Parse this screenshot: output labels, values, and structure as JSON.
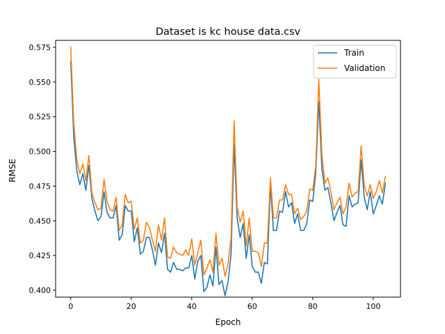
{
  "chart_data": {
    "type": "line",
    "title": "Dataset is kc house data.csv",
    "xlabel": "Epoch",
    "ylabel": "RMSE",
    "xlim": [
      -5,
      109
    ],
    "ylim": [
      0.395,
      0.58
    ],
    "xticks": [
      "0",
      "20",
      "40",
      "60",
      "80",
      "100"
    ],
    "yticks": [
      "0.400",
      "0.425",
      "0.450",
      "0.475",
      "0.500",
      "0.525",
      "0.550",
      "0.575"
    ],
    "grid": false,
    "legend_position": "top-right",
    "x": [
      0,
      1,
      2,
      3,
      4,
      5,
      6,
      7,
      8,
      9,
      10,
      11,
      12,
      13,
      14,
      15,
      16,
      17,
      18,
      19,
      20,
      21,
      22,
      23,
      24,
      25,
      26,
      27,
      28,
      29,
      30,
      31,
      32,
      33,
      34,
      35,
      36,
      37,
      38,
      39,
      40,
      41,
      42,
      43,
      44,
      45,
      46,
      47,
      48,
      49,
      50,
      51,
      52,
      53,
      54,
      55,
      56,
      57,
      58,
      59,
      60,
      61,
      62,
      63,
      64,
      65,
      66,
      67,
      68,
      69,
      70,
      71,
      72,
      73,
      74,
      75,
      76,
      77,
      78,
      79,
      80,
      81,
      82,
      83,
      84,
      85,
      86,
      87,
      88,
      89,
      90,
      91,
      92,
      93,
      94,
      95,
      96,
      97,
      98,
      99,
      100,
      101,
      102,
      103,
      104
    ],
    "series": [
      {
        "name": "Train",
        "color": "#1f77b4",
        "values": [
          0.565,
          0.51,
          0.486,
          0.476,
          0.484,
          0.472,
          0.49,
          0.466,
          0.457,
          0.45,
          0.453,
          0.471,
          0.456,
          0.452,
          0.452,
          0.461,
          0.436,
          0.44,
          0.461,
          0.457,
          0.457,
          0.435,
          0.445,
          0.426,
          0.428,
          0.438,
          0.438,
          0.429,
          0.418,
          0.434,
          0.427,
          0.441,
          0.415,
          0.413,
          0.42,
          0.415,
          0.415,
          0.414,
          0.416,
          0.416,
          0.425,
          0.408,
          0.421,
          0.425,
          0.399,
          0.402,
          0.411,
          0.403,
          0.431,
          0.404,
          0.407,
          0.396,
          0.406,
          0.426,
          0.505,
          0.452,
          0.438,
          0.448,
          0.423,
          0.44,
          0.417,
          0.413,
          0.413,
          0.405,
          0.42,
          0.419,
          0.476,
          0.443,
          0.443,
          0.457,
          0.456,
          0.471,
          0.46,
          0.463,
          0.448,
          0.455,
          0.443,
          0.443,
          0.448,
          0.465,
          0.464,
          0.485,
          0.536,
          0.488,
          0.472,
          0.474,
          0.463,
          0.45,
          0.456,
          0.461,
          0.447,
          0.446,
          0.468,
          0.46,
          0.462,
          0.463,
          0.494,
          0.467,
          0.458,
          0.471,
          0.455,
          0.461,
          0.468,
          0.462,
          0.477
        ]
      },
      {
        "name": "Validation",
        "color": "#ff7f0e",
        "values": [
          0.575,
          0.52,
          0.494,
          0.484,
          0.491,
          0.479,
          0.497,
          0.47,
          0.463,
          0.458,
          0.459,
          0.48,
          0.464,
          0.458,
          0.457,
          0.467,
          0.443,
          0.447,
          0.469,
          0.463,
          0.464,
          0.444,
          0.452,
          0.434,
          0.436,
          0.449,
          0.445,
          0.436,
          0.428,
          0.447,
          0.436,
          0.452,
          0.424,
          0.423,
          0.431,
          0.427,
          0.426,
          0.425,
          0.429,
          0.425,
          0.437,
          0.418,
          0.427,
          0.436,
          0.411,
          0.416,
          0.422,
          0.413,
          0.441,
          0.418,
          0.423,
          0.41,
          0.419,
          0.438,
          0.522,
          0.46,
          0.449,
          0.457,
          0.432,
          0.452,
          0.428,
          0.428,
          0.427,
          0.417,
          0.434,
          0.434,
          0.481,
          0.452,
          0.452,
          0.465,
          0.465,
          0.476,
          0.469,
          0.469,
          0.455,
          0.459,
          0.451,
          0.453,
          0.457,
          0.473,
          0.472,
          0.49,
          0.552,
          0.498,
          0.477,
          0.481,
          0.471,
          0.458,
          0.463,
          0.467,
          0.455,
          0.46,
          0.477,
          0.467,
          0.47,
          0.471,
          0.504,
          0.476,
          0.468,
          0.476,
          0.466,
          0.471,
          0.479,
          0.47,
          0.482
        ]
      }
    ]
  }
}
